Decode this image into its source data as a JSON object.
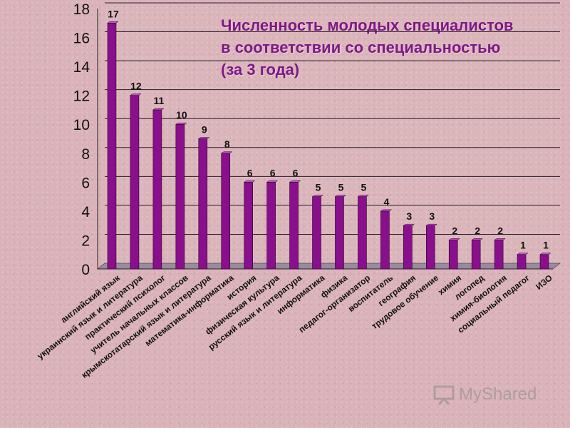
{
  "chart_data": {
    "type": "bar",
    "title": "Численность молодых специалистов в соответствии со специальностью (за 3 года)",
    "categories": [
      "английский язык",
      "украинский язык и литература",
      "практический психолог",
      "учитель начальных классов",
      "крымскотатарский язык и литература",
      "математика-информатика",
      "история",
      "физическая культура",
      "русский язык и литература",
      "информатика",
      "физика",
      "педагог-организатор",
      "воспитатель",
      "география",
      "трудовое обучение",
      "химия",
      "логопед",
      "химия-биология",
      "социальный педагог",
      "ИЗО"
    ],
    "values": [
      17,
      12,
      11,
      10,
      9,
      8,
      6,
      6,
      6,
      5,
      5,
      5,
      4,
      3,
      3,
      2,
      2,
      2,
      1,
      1
    ],
    "ylim": [
      0,
      18
    ],
    "yticks": [
      "0",
      "2",
      "4",
      "6",
      "8",
      "10",
      "12",
      "14",
      "16",
      "18"
    ],
    "grid": true,
    "bar_color": "#8a0f8c",
    "floor_color": "#9a8a9e"
  },
  "watermark": {
    "text": "MyShared"
  }
}
